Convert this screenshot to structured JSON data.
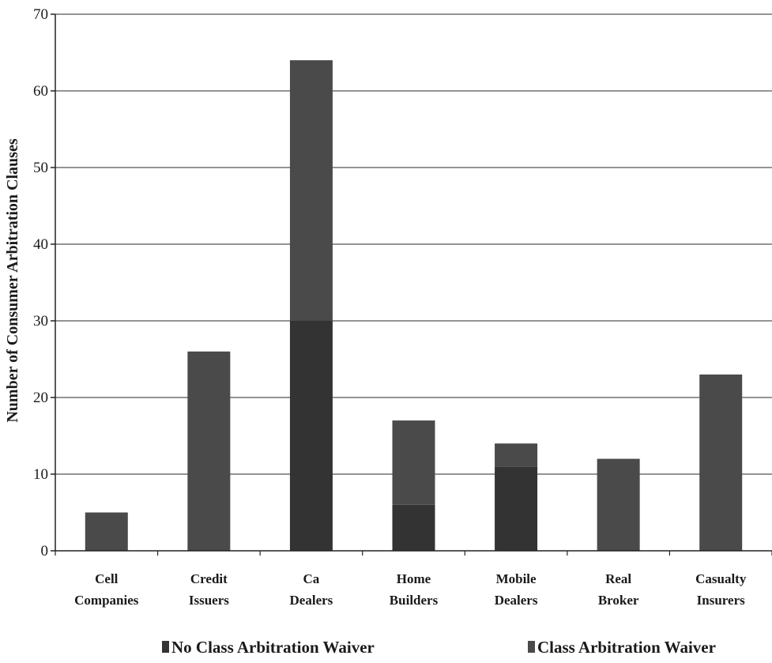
{
  "chart_data": {
    "type": "bar",
    "stacked": true,
    "categories": [
      [
        "Cell",
        "Companies"
      ],
      [
        "Credit",
        "Issuers"
      ],
      [
        "Ca",
        "Dealers"
      ],
      [
        "Home",
        "Builders"
      ],
      [
        "Mobile",
        "Dealers"
      ],
      [
        "Real",
        "Broker"
      ],
      [
        "Casualty",
        "Insurers"
      ]
    ],
    "series": [
      {
        "name": "No Class Arbitration Waiver",
        "values": [
          0,
          0,
          30,
          6,
          11,
          0,
          0
        ],
        "color": "#333333"
      },
      {
        "name": "Class Arbitration Waiver",
        "values": [
          5,
          26,
          34,
          11,
          3,
          12,
          23
        ],
        "color": "#4a4a4a"
      }
    ],
    "ylabel": "Number of Consumer Arbitration Clauses",
    "ylim": [
      0,
      70
    ],
    "yticks": [
      0,
      10,
      20,
      30,
      40,
      50,
      60,
      70
    ],
    "grid": true,
    "legend_position": "bottom"
  }
}
